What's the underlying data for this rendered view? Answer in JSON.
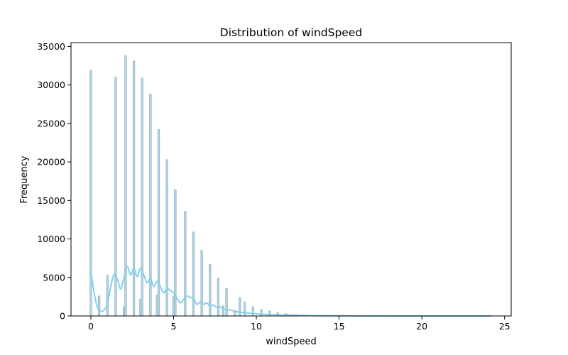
{
  "chart_data": {
    "type": "bar",
    "title": "Distribution of windSpeed",
    "xlabel": "windSpeed",
    "ylabel": "Frequency",
    "xlim": [
      -1.2,
      25.4
    ],
    "ylim": [
      0,
      35500
    ],
    "xticks": [
      0,
      5,
      10,
      15,
      20,
      25
    ],
    "yticks": [
      0,
      5000,
      10000,
      15000,
      20000,
      25000,
      30000,
      35000
    ],
    "grid": false,
    "bar_color": "#add8e6",
    "bar_edge_color": "#8fa3b0",
    "kde_color": "#87ceeb",
    "bars": {
      "x": [
        0,
        0.5,
        1.0,
        1.5,
        2.0,
        2.1,
        2.6,
        3.0,
        3.1,
        3.6,
        4.0,
        4.1,
        4.6,
        5.0,
        5.1,
        5.7,
        6.2,
        6.7,
        7.2,
        7.7,
        8.0,
        8.2,
        8.7,
        9.0,
        9.3,
        9.8,
        10.3,
        10.8,
        11.3,
        11.8,
        12.4,
        12.9,
        13.4,
        13.9,
        14.4,
        15.0,
        15.5,
        16.0,
        16.5,
        17.0,
        17.5,
        18.0,
        19.0,
        20.0,
        21.0,
        22.0,
        23.0,
        24.2
      ],
      "values": [
        31900,
        2600,
        5300,
        31000,
        1200,
        33800,
        33100,
        2200,
        30900,
        28800,
        2700,
        24200,
        20300,
        2600,
        16400,
        13600,
        10900,
        8500,
        6700,
        4900,
        1300,
        3600,
        700,
        2400,
        1800,
        1200,
        850,
        650,
        450,
        300,
        200,
        150,
        100,
        80,
        60,
        40,
        30,
        25,
        20,
        15,
        12,
        10,
        8,
        6,
        5,
        4,
        3,
        2
      ]
    },
    "kde": {
      "x": [
        0,
        0.2,
        0.4,
        0.6,
        0.8,
        1.0,
        1.2,
        1.4,
        1.6,
        1.8,
        2.0,
        2.2,
        2.4,
        2.6,
        2.8,
        3.0,
        3.2,
        3.4,
        3.6,
        3.8,
        4.0,
        4.2,
        4.4,
        4.6,
        4.8,
        5.0,
        5.2,
        5.4,
        5.6,
        5.8,
        6.0,
        6.2,
        6.4,
        6.6,
        6.8,
        7.0,
        7.2,
        7.4,
        7.6,
        7.8,
        8.0,
        8.4,
        8.8,
        9.2,
        9.6,
        10.0,
        10.5,
        11.0,
        12.0,
        13.0,
        14.0,
        16.0,
        20.0,
        24.2
      ],
      "y": [
        5800,
        3000,
        1100,
        600,
        800,
        1600,
        3800,
        5400,
        4800,
        3500,
        5000,
        6400,
        5300,
        6200,
        5100,
        6200,
        5300,
        4300,
        4900,
        3800,
        4500,
        3800,
        3000,
        3600,
        3300,
        3000,
        2300,
        1700,
        2100,
        2600,
        2400,
        2300,
        1500,
        1800,
        1500,
        1700,
        1300,
        1400,
        1100,
        1200,
        900,
        800,
        550,
        450,
        350,
        300,
        220,
        180,
        110,
        60,
        30,
        10,
        2,
        0
      ]
    }
  }
}
